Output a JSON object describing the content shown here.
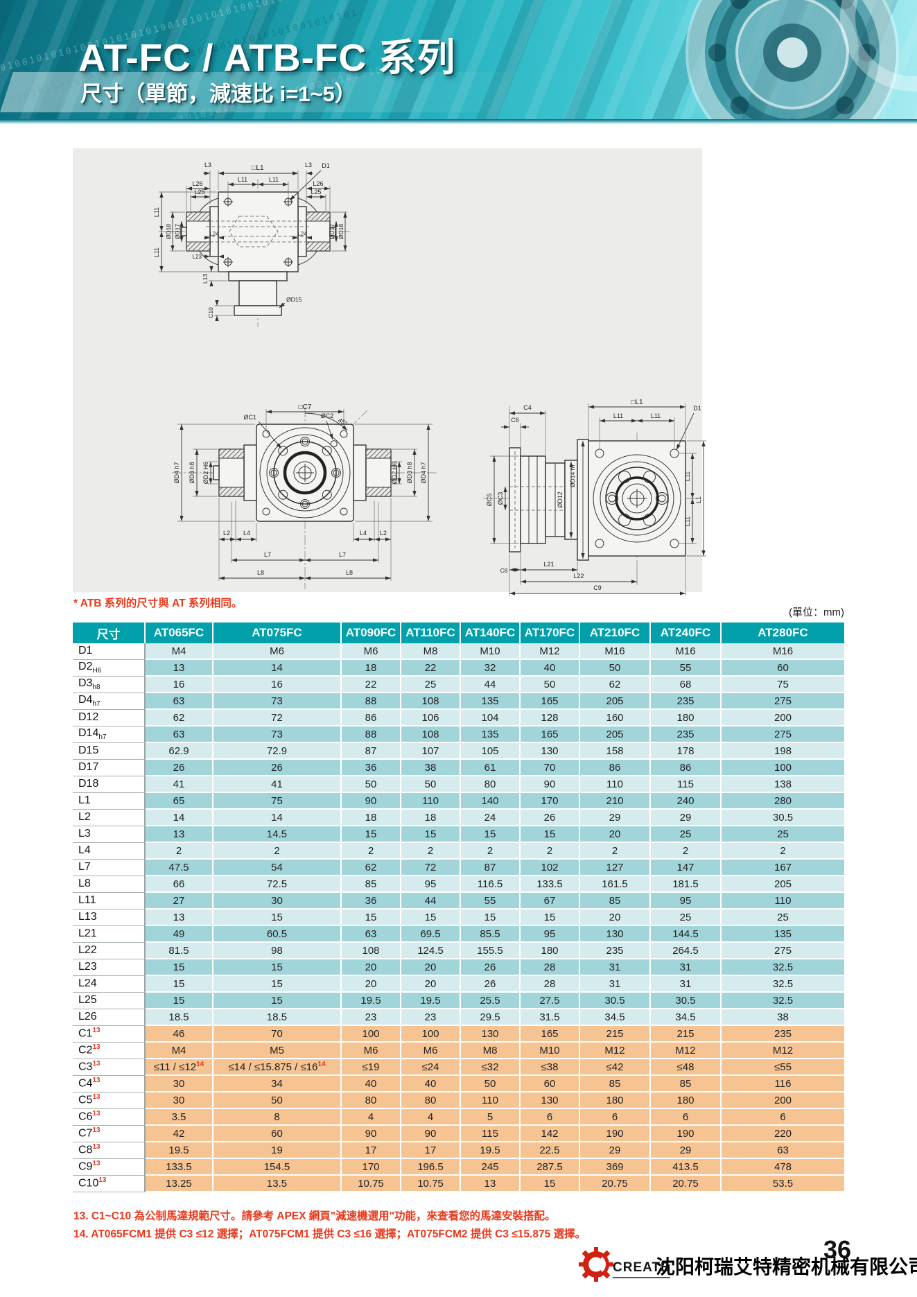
{
  "banner": {
    "title": "AT-FC / ATB-FC 系列",
    "subtitle": "尺寸（單節，減速比 i=1~5）",
    "binary": "10101001010101001010101010010101010100101010101001010101"
  },
  "note": "* ATB 系列的尺寸與 AT 系列相同。",
  "unit_label": "(單位：mm)",
  "drawings": {
    "d1": {
      "l3": "L3",
      "sq_l1": "□L1",
      "d1": "D1",
      "l11": "L11",
      "l26": "L26",
      "l25": "L25",
      "dd18": "ØD18",
      "dd17": "ØD17",
      "l24": "L24",
      "l23": "L23",
      "l13": "L13",
      "c10": "C10",
      "dd15": "ØD15"
    },
    "d2": {
      "sq_c7": "□C7",
      "dc1": "ØC1",
      "dc2": "ØC2",
      "deg": "45°",
      "dd4": "ØD4 h7",
      "dd3": "ØD3 h8",
      "dd2": "ØD2 H6",
      "l2": "L2",
      "l4": "L4",
      "l7": "L7",
      "l8": "L8"
    },
    "d3": {
      "c4": "C4",
      "c6": "C6",
      "sq_l1": "□L1",
      "l11": "L11",
      "d1": "D1",
      "dd14": "ØD14 h7",
      "dc5": "ØC5",
      "dc3": "ØC3",
      "dd12": "ØD12",
      "l1": "L1",
      "c8": "C8",
      "l21": "L21",
      "l22": "L22",
      "c9": "C9"
    }
  },
  "table": {
    "header": [
      "尺寸",
      "AT065FC",
      "AT075FC",
      "AT090FC",
      "AT110FC",
      "AT140FC",
      "AT170FC",
      "AT210FC",
      "AT240FC",
      "AT280FC"
    ],
    "rows": [
      {
        "label": "D1",
        "values": [
          "M4",
          "M6",
          "M6",
          "M8",
          "M10",
          "M12",
          "M16",
          "M16",
          "M16"
        ]
      },
      {
        "label": "D2",
        "sub": "H6",
        "values": [
          "13",
          "14",
          "18",
          "22",
          "32",
          "40",
          "50",
          "55",
          "60"
        ]
      },
      {
        "label": "D3",
        "sub": "h8",
        "values": [
          "16",
          "16",
          "22",
          "25",
          "44",
          "50",
          "62",
          "68",
          "75"
        ]
      },
      {
        "label": "D4",
        "sub": "h7",
        "values": [
          "63",
          "73",
          "88",
          "108",
          "135",
          "165",
          "205",
          "235",
          "275"
        ]
      },
      {
        "label": "D12",
        "values": [
          "62",
          "72",
          "86",
          "106",
          "104",
          "128",
          "160",
          "180",
          "200"
        ]
      },
      {
        "label": "D14",
        "sub": "h7",
        "values": [
          "63",
          "73",
          "88",
          "108",
          "135",
          "165",
          "205",
          "235",
          "275"
        ]
      },
      {
        "label": "D15",
        "values": [
          "62.9",
          "72.9",
          "87",
          "107",
          "105",
          "130",
          "158",
          "178",
          "198"
        ]
      },
      {
        "label": "D17",
        "values": [
          "26",
          "26",
          "36",
          "38",
          "61",
          "70",
          "86",
          "86",
          "100"
        ]
      },
      {
        "label": "D18",
        "values": [
          "41",
          "41",
          "50",
          "50",
          "80",
          "90",
          "110",
          "115",
          "138"
        ]
      },
      {
        "label": "L1",
        "values": [
          "65",
          "75",
          "90",
          "110",
          "140",
          "170",
          "210",
          "240",
          "280"
        ]
      },
      {
        "label": "L2",
        "values": [
          "14",
          "14",
          "18",
          "18",
          "24",
          "26",
          "29",
          "29",
          "30.5"
        ]
      },
      {
        "label": "L3",
        "values": [
          "13",
          "14.5",
          "15",
          "15",
          "15",
          "15",
          "20",
          "25",
          "25"
        ]
      },
      {
        "label": "L4",
        "values": [
          "2",
          "2",
          "2",
          "2",
          "2",
          "2",
          "2",
          "2",
          "2"
        ]
      },
      {
        "label": "L7",
        "values": [
          "47.5",
          "54",
          "62",
          "72",
          "87",
          "102",
          "127",
          "147",
          "167"
        ]
      },
      {
        "label": "L8",
        "values": [
          "66",
          "72.5",
          "85",
          "95",
          "116.5",
          "133.5",
          "161.5",
          "181.5",
          "205"
        ]
      },
      {
        "label": "L11",
        "values": [
          "27",
          "30",
          "36",
          "44",
          "55",
          "67",
          "85",
          "95",
          "110"
        ]
      },
      {
        "label": "L13",
        "values": [
          "13",
          "15",
          "15",
          "15",
          "15",
          "15",
          "20",
          "25",
          "25"
        ]
      },
      {
        "label": "L21",
        "values": [
          "49",
          "60.5",
          "63",
          "69.5",
          "85.5",
          "95",
          "130",
          "144.5",
          "135"
        ]
      },
      {
        "label": "L22",
        "values": [
          "81.5",
          "98",
          "108",
          "124.5",
          "155.5",
          "180",
          "235",
          "264.5",
          "275"
        ]
      },
      {
        "label": "L23",
        "values": [
          "15",
          "15",
          "20",
          "20",
          "26",
          "28",
          "31",
          "31",
          "32.5"
        ]
      },
      {
        "label": "L24",
        "values": [
          "15",
          "15",
          "20",
          "20",
          "26",
          "28",
          "31",
          "31",
          "32.5"
        ]
      },
      {
        "label": "L25",
        "values": [
          "15",
          "15",
          "19.5",
          "19.5",
          "25.5",
          "27.5",
          "30.5",
          "30.5",
          "32.5"
        ]
      },
      {
        "label": "L26",
        "values": [
          "18.5",
          "18.5",
          "23",
          "23",
          "29.5",
          "31.5",
          "34.5",
          "34.5",
          "38"
        ]
      },
      {
        "label": "C1",
        "sup": "13",
        "group": "motor",
        "values": [
          "46",
          "70",
          "100",
          "100",
          "130",
          "165",
          "215",
          "215",
          "235"
        ]
      },
      {
        "label": "C2",
        "sup": "13",
        "group": "motor",
        "values": [
          "M4",
          "M5",
          "M6",
          "M6",
          "M8",
          "M10",
          "M12",
          "M12",
          "M12"
        ]
      },
      {
        "label": "C3",
        "sup": "13",
        "group": "motor",
        "values": [
          "≤11 / ≤12{14}",
          "≤14 / ≤15.875 / ≤16{14}",
          "≤19",
          "≤24",
          "≤32",
          "≤38",
          "≤42",
          "≤48",
          "≤55"
        ]
      },
      {
        "label": "C4",
        "sup": "13",
        "group": "motor",
        "values": [
          "30",
          "34",
          "40",
          "40",
          "50",
          "60",
          "85",
          "85",
          "116"
        ]
      },
      {
        "label": "C5",
        "sup": "13",
        "group": "motor",
        "values": [
          "30",
          "50",
          "80",
          "80",
          "110",
          "130",
          "180",
          "180",
          "200"
        ]
      },
      {
        "label": "C6",
        "sup": "13",
        "group": "motor",
        "values": [
          "3.5",
          "8",
          "4",
          "4",
          "5",
          "6",
          "6",
          "6",
          "6"
        ]
      },
      {
        "label": "C7",
        "sup": "13",
        "group": "motor",
        "values": [
          "42",
          "60",
          "90",
          "90",
          "115",
          "142",
          "190",
          "190",
          "220"
        ]
      },
      {
        "label": "C8",
        "sup": "13",
        "group": "motor",
        "values": [
          "19.5",
          "19",
          "17",
          "17",
          "19.5",
          "22.5",
          "29",
          "29",
          "63"
        ]
      },
      {
        "label": "C9",
        "sup": "13",
        "group": "motor",
        "values": [
          "133.5",
          "154.5",
          "170",
          "196.5",
          "245",
          "287.5",
          "369",
          "413.5",
          "478"
        ]
      },
      {
        "label": "C10",
        "sup": "13",
        "group": "motor",
        "values": [
          "13.25",
          "13.5",
          "10.75",
          "10.75",
          "13",
          "15",
          "20.75",
          "20.75",
          "53.5"
        ]
      }
    ]
  },
  "footnotes": [
    "13. C1~C10 為公制馬達規範尺寸。請參考 APEX 網頁\"減速機選用\"功能，來查看您的馬達安裝搭配。",
    "14. AT065FCM1 提供 C3 ≤12 選擇；AT075FCM1 提供 C3 ≤16 選擇；AT075FCM2 提供 C3 ≤15.875 選擇。"
  ],
  "footer": {
    "logo_text": "CREATE",
    "company": "沈阳柯瑞艾特精密机械有限公司",
    "page_number": "36"
  },
  "colors": {
    "header_teal": "#01a0ab",
    "row_light": "#d5ebed",
    "row_dark": "#a2d5da",
    "row_orange": "#f6c493",
    "accent_red": "#e8391c",
    "logo_red": "#cf2213"
  }
}
